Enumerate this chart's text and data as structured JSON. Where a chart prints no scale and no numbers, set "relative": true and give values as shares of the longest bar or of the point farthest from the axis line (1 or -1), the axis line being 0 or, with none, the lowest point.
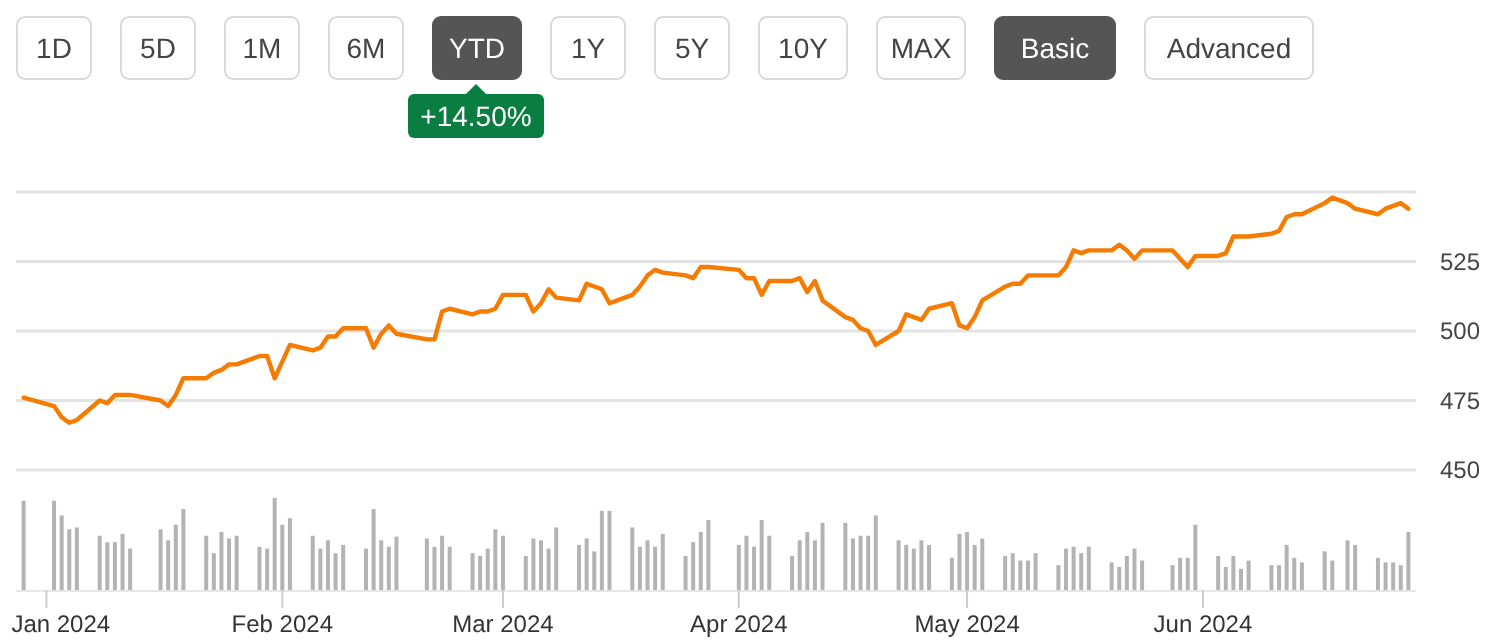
{
  "chart_data": [
    {
      "type": "line",
      "annotations": [
        "1D",
        "5D",
        "1M",
        "6M",
        "YTD",
        "1Y",
        "5Y",
        "10Y",
        "MAX",
        "Basic",
        "Advanced",
        "+14.50%"
      ],
      "x": [
        "2023-12-29",
        "2024-01-02",
        "2024-01-03",
        "2024-01-04",
        "2024-01-05",
        "2024-01-08",
        "2024-01-09",
        "2024-01-10",
        "2024-01-11",
        "2024-01-12",
        "2024-01-16",
        "2024-01-17",
        "2024-01-18",
        "2024-01-19",
        "2024-01-22",
        "2024-01-23",
        "2024-01-24",
        "2024-01-25",
        "2024-01-26",
        "2024-01-29",
        "2024-01-30",
        "2024-01-31",
        "2024-02-01",
        "2024-02-02",
        "2024-02-05",
        "2024-02-06",
        "2024-02-07",
        "2024-02-08",
        "2024-02-09",
        "2024-02-12",
        "2024-02-13",
        "2024-02-14",
        "2024-02-15",
        "2024-02-16",
        "2024-02-20",
        "2024-02-21",
        "2024-02-22",
        "2024-02-23",
        "2024-02-26",
        "2024-02-27",
        "2024-02-28",
        "2024-02-29",
        "2024-03-01",
        "2024-03-04",
        "2024-03-05",
        "2024-03-06",
        "2024-03-07",
        "2024-03-08",
        "2024-03-11",
        "2024-03-12",
        "2024-03-13",
        "2024-03-14",
        "2024-03-15",
        "2024-03-18",
        "2024-03-19",
        "2024-03-20",
        "2024-03-21",
        "2024-03-22",
        "2024-03-25",
        "2024-03-26",
        "2024-03-27",
        "2024-03-28",
        "2024-04-01",
        "2024-04-02",
        "2024-04-03",
        "2024-04-04",
        "2024-04-05",
        "2024-04-08",
        "2024-04-09",
        "2024-04-10",
        "2024-04-11",
        "2024-04-12",
        "2024-04-15",
        "2024-04-16",
        "2024-04-17",
        "2024-04-18",
        "2024-04-19",
        "2024-04-22",
        "2024-04-23",
        "2024-04-24",
        "2024-04-25",
        "2024-04-26",
        "2024-04-29",
        "2024-04-30",
        "2024-05-01",
        "2024-05-02",
        "2024-05-03",
        "2024-05-06",
        "2024-05-07",
        "2024-05-08",
        "2024-05-09",
        "2024-05-10",
        "2024-05-13",
        "2024-05-14",
        "2024-05-15",
        "2024-05-16",
        "2024-05-17",
        "2024-05-20",
        "2024-05-21",
        "2024-05-22",
        "2024-05-23",
        "2024-05-24",
        "2024-05-28",
        "2024-05-29",
        "2024-05-30",
        "2024-05-31",
        "2024-06-03",
        "2024-06-04",
        "2024-06-05",
        "2024-06-06",
        "2024-06-07",
        "2024-06-10",
        "2024-06-11",
        "2024-06-12",
        "2024-06-13",
        "2024-06-14",
        "2024-06-17",
        "2024-06-18",
        "2024-06-20",
        "2024-06-21",
        "2024-06-24",
        "2024-06-25",
        "2024-06-26",
        "2024-06-27",
        "2024-06-28"
      ],
      "series": [
        {
          "color": "#f57c00",
          "values": [
            476,
            473,
            469,
            467,
            468,
            475,
            474,
            477,
            477,
            477,
            475,
            473,
            477,
            483,
            483,
            485,
            486,
            488,
            488,
            491,
            491,
            483,
            489,
            495,
            493,
            494,
            498,
            498,
            501,
            501,
            494,
            499,
            502,
            499,
            497,
            497,
            507,
            508,
            506,
            507,
            507,
            508,
            513,
            513,
            507,
            510,
            515,
            512,
            511,
            517,
            516,
            515,
            510,
            513,
            516,
            520,
            522,
            521,
            520,
            519,
            523,
            523,
            522,
            519,
            519,
            513,
            518,
            518,
            519,
            514,
            518,
            511,
            505,
            504,
            501,
            500,
            495,
            500,
            506,
            505,
            504,
            508,
            510,
            502,
            501,
            505,
            511,
            516,
            517,
            517,
            520,
            520,
            520,
            523,
            529,
            528,
            529,
            529,
            531,
            529,
            526,
            529,
            529,
            526,
            523,
            527,
            527,
            528,
            534,
            534,
            534,
            535,
            536,
            541,
            542,
            542,
            546,
            548,
            546,
            544,
            542,
            544,
            545,
            546,
            544
          ]
        }
      ],
      "xlim": [
        "2023-12-28",
        "2024-06-29"
      ],
      "ylim": [
        450,
        550
      ],
      "yticks": [
        450,
        475,
        500,
        525,
        {
          "value": 550,
          "label": null
        }
      ],
      "grid": "y",
      "tick_labels": "y"
    },
    {
      "type": "bar",
      "relative": true,
      "x": [
        "2023-12-29",
        "2024-01-02",
        "2024-01-03",
        "2024-01-04",
        "2024-01-05",
        "2024-01-08",
        "2024-01-09",
        "2024-01-10",
        "2024-01-11",
        "2024-01-12",
        "2024-01-16",
        "2024-01-17",
        "2024-01-18",
        "2024-01-19",
        "2024-01-22",
        "2024-01-23",
        "2024-01-24",
        "2024-01-25",
        "2024-01-26",
        "2024-01-29",
        "2024-01-30",
        "2024-01-31",
        "2024-02-01",
        "2024-02-02",
        "2024-02-05",
        "2024-02-06",
        "2024-02-07",
        "2024-02-08",
        "2024-02-09",
        "2024-02-12",
        "2024-02-13",
        "2024-02-14",
        "2024-02-15",
        "2024-02-16",
        "2024-02-20",
        "2024-02-21",
        "2024-02-22",
        "2024-02-23",
        "2024-02-26",
        "2024-02-27",
        "2024-02-28",
        "2024-02-29",
        "2024-03-01",
        "2024-03-04",
        "2024-03-05",
        "2024-03-06",
        "2024-03-07",
        "2024-03-08",
        "2024-03-11",
        "2024-03-12",
        "2024-03-13",
        "2024-03-14",
        "2024-03-15",
        "2024-03-18",
        "2024-03-19",
        "2024-03-20",
        "2024-03-21",
        "2024-03-22",
        "2024-03-25",
        "2024-03-26",
        "2024-03-27",
        "2024-03-28",
        "2024-04-01",
        "2024-04-02",
        "2024-04-03",
        "2024-04-04",
        "2024-04-05",
        "2024-04-08",
        "2024-04-09",
        "2024-04-10",
        "2024-04-11",
        "2024-04-12",
        "2024-04-15",
        "2024-04-16",
        "2024-04-17",
        "2024-04-18",
        "2024-04-19",
        "2024-04-22",
        "2024-04-23",
        "2024-04-24",
        "2024-04-25",
        "2024-04-26",
        "2024-04-29",
        "2024-04-30",
        "2024-05-01",
        "2024-05-02",
        "2024-05-03",
        "2024-05-06",
        "2024-05-07",
        "2024-05-08",
        "2024-05-09",
        "2024-05-10",
        "2024-05-13",
        "2024-05-14",
        "2024-05-15",
        "2024-05-16",
        "2024-05-17",
        "2024-05-20",
        "2024-05-21",
        "2024-05-22",
        "2024-05-23",
        "2024-05-24",
        "2024-05-28",
        "2024-05-29",
        "2024-05-30",
        "2024-05-31",
        "2024-06-03",
        "2024-06-04",
        "2024-06-05",
        "2024-06-06",
        "2024-06-07",
        "2024-06-10",
        "2024-06-11",
        "2024-06-12",
        "2024-06-13",
        "2024-06-14",
        "2024-06-17",
        "2024-06-18",
        "2024-06-20",
        "2024-06-21",
        "2024-06-24",
        "2024-06-25",
        "2024-06-26",
        "2024-06-27",
        "2024-06-28"
      ],
      "series": [
        {
          "color": "#b3b3b3",
          "values": [
            0.97,
            0.97,
            0.81,
            0.66,
            0.68,
            0.59,
            0.52,
            0.52,
            0.61,
            0.45,
            0.66,
            0.54,
            0.71,
            0.88,
            0.59,
            0.4,
            0.63,
            0.56,
            0.59,
            0.47,
            0.45,
            1,
            0.71,
            0.78,
            0.59,
            0.45,
            0.54,
            0.4,
            0.49,
            0.45,
            0.88,
            0.54,
            0.47,
            0.58,
            0.56,
            0.47,
            0.59,
            0.47,
            0.4,
            0.37,
            0.45,
            0.66,
            0.59,
            0.37,
            0.56,
            0.54,
            0.45,
            0.68,
            0.49,
            0.56,
            0.42,
            0.86,
            0.86,
            0.68,
            0.47,
            0.54,
            0.47,
            0.61,
            0.37,
            0.52,
            0.63,
            0.76,
            0.49,
            0.59,
            0.47,
            0.76,
            0.59,
            0.37,
            0.54,
            0.63,
            0.54,
            0.73,
            0.73,
            0.56,
            0.59,
            0.59,
            0.81,
            0.54,
            0.49,
            0.45,
            0.54,
            0.49,
            0.35,
            0.61,
            0.63,
            0.49,
            0.56,
            0.37,
            0.4,
            0.32,
            0.32,
            0.4,
            0.27,
            0.45,
            0.47,
            0.4,
            0.47,
            0.3,
            0.25,
            0.37,
            0.45,
            0.32,
            0.27,
            0.35,
            0.35,
            0.71,
            0.37,
            0.25,
            0.37,
            0.23,
            0.32,
            0.27,
            0.27,
            0.49,
            0.35,
            0.3,
            0.42,
            0.32,
            0.54,
            0.49,
            0.35,
            0.3,
            0.3,
            0.27,
            0.63
          ]
        }
      ],
      "xlim": [
        "2023-12-28",
        "2024-06-29"
      ],
      "xticks": [
        {
          "value": "2024-01-01",
          "label": "Jan 2024"
        },
        {
          "value": "2024-02-01",
          "label": "Feb 2024"
        },
        {
          "value": "2024-03-01",
          "label": "Mar 2024"
        },
        {
          "value": "2024-04-01",
          "label": "Apr 2024"
        },
        {
          "value": "2024-05-01",
          "label": "May 2024"
        },
        {
          "value": "2024-06-01",
          "label": "Jun 2024"
        }
      ],
      "tick_labels": "x"
    }
  ]
}
